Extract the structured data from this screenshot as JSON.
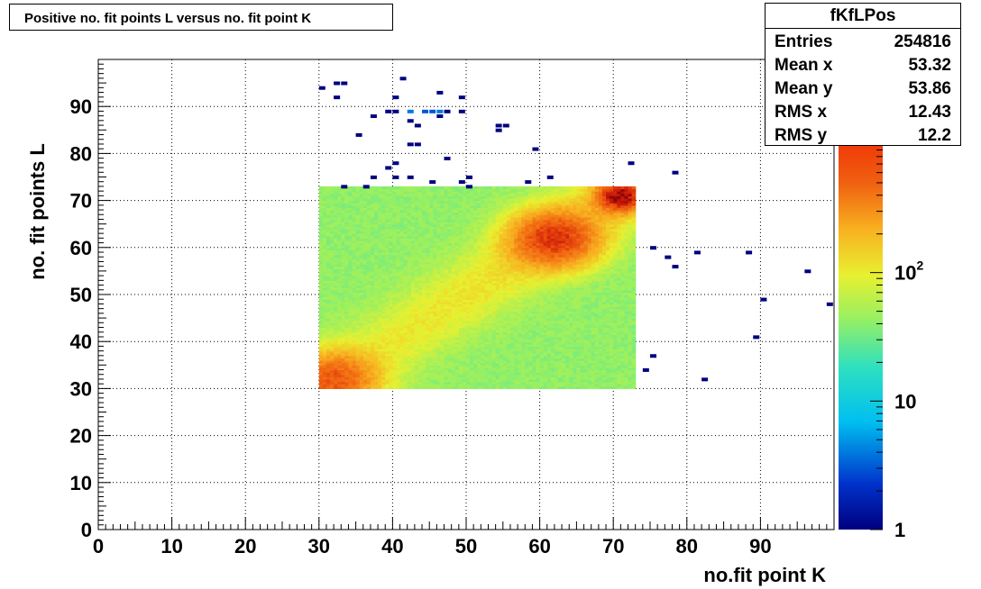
{
  "chart_data": {
    "type": "heatmap",
    "title": "Positive no. fit points L versus no. fit point K",
    "xlabel": "no.fit point K",
    "ylabel": "no. fit points  L",
    "xlim": [
      0,
      100
    ],
    "ylim": [
      0,
      100
    ],
    "x_ticks": [
      "0",
      "10",
      "20",
      "30",
      "40",
      "50",
      "60",
      "70",
      "80",
      "90"
    ],
    "y_ticks": [
      "0",
      "10",
      "20",
      "30",
      "40",
      "50",
      "60",
      "70",
      "80",
      "90"
    ],
    "grid": true,
    "colorbar": {
      "scale": "log",
      "range": [
        1,
        1000
      ],
      "labels": [
        {
          "value": 1,
          "text": "1"
        },
        {
          "value": 10,
          "text": "10"
        },
        {
          "value": 100,
          "text": "10",
          "sup": "2"
        }
      ]
    },
    "dense_region": {
      "x_range": [
        30,
        73
      ],
      "y_range": [
        30,
        73
      ]
    },
    "hot_spots": [
      {
        "x": 32,
        "y": 32,
        "value": 450
      },
      {
        "x": 62,
        "y": 62,
        "value": 600
      },
      {
        "x": 71,
        "y": 71,
        "value": 900
      }
    ],
    "sparse_points": [
      {
        "x": 30,
        "y": 94
      },
      {
        "x": 32,
        "y": 95
      },
      {
        "x": 33,
        "y": 95
      },
      {
        "x": 32,
        "y": 92
      },
      {
        "x": 41,
        "y": 96
      },
      {
        "x": 40,
        "y": 92
      },
      {
        "x": 46,
        "y": 93
      },
      {
        "x": 49,
        "y": 92
      },
      {
        "x": 39,
        "y": 89
      },
      {
        "x": 40,
        "y": 89
      },
      {
        "x": 42,
        "y": 89,
        "value": 4
      },
      {
        "x": 44,
        "y": 89,
        "value": 3
      },
      {
        "x": 45,
        "y": 89,
        "value": 3
      },
      {
        "x": 46,
        "y": 89,
        "value": 4
      },
      {
        "x": 47,
        "y": 89
      },
      {
        "x": 49,
        "y": 89
      },
      {
        "x": 37,
        "y": 88
      },
      {
        "x": 46,
        "y": 88
      },
      {
        "x": 42,
        "y": 87
      },
      {
        "x": 43,
        "y": 86
      },
      {
        "x": 54,
        "y": 86
      },
      {
        "x": 55,
        "y": 86
      },
      {
        "x": 54,
        "y": 85
      },
      {
        "x": 35,
        "y": 84
      },
      {
        "x": 42,
        "y": 82
      },
      {
        "x": 43,
        "y": 82
      },
      {
        "x": 59,
        "y": 81
      },
      {
        "x": 47,
        "y": 79
      },
      {
        "x": 40,
        "y": 78
      },
      {
        "x": 72,
        "y": 78
      },
      {
        "x": 39,
        "y": 77
      },
      {
        "x": 78,
        "y": 76
      },
      {
        "x": 37,
        "y": 75
      },
      {
        "x": 40,
        "y": 75
      },
      {
        "x": 42,
        "y": 75
      },
      {
        "x": 50,
        "y": 75
      },
      {
        "x": 61,
        "y": 75
      },
      {
        "x": 45,
        "y": 74
      },
      {
        "x": 49,
        "y": 74
      },
      {
        "x": 58,
        "y": 74
      },
      {
        "x": 33,
        "y": 73
      },
      {
        "x": 36,
        "y": 73
      },
      {
        "x": 50,
        "y": 73
      },
      {
        "x": 75,
        "y": 60
      },
      {
        "x": 81,
        "y": 59
      },
      {
        "x": 88,
        "y": 59
      },
      {
        "x": 77,
        "y": 58
      },
      {
        "x": 78,
        "y": 56
      },
      {
        "x": 96,
        "y": 55
      },
      {
        "x": 90,
        "y": 49
      },
      {
        "x": 99,
        "y": 48
      },
      {
        "x": 89,
        "y": 41
      },
      {
        "x": 75,
        "y": 37
      },
      {
        "x": 74,
        "y": 34
      },
      {
        "x": 82,
        "y": 32
      }
    ]
  },
  "stats": {
    "name": "fKfLPos",
    "rows": [
      {
        "key": "Entries",
        "value": "254816"
      },
      {
        "key": "Mean x",
        "value": "53.32"
      },
      {
        "key": "Mean y",
        "value": "53.86"
      },
      {
        "key": "RMS x",
        "value": "12.43"
      },
      {
        "key": "RMS y",
        "value": "12.2"
      }
    ]
  }
}
